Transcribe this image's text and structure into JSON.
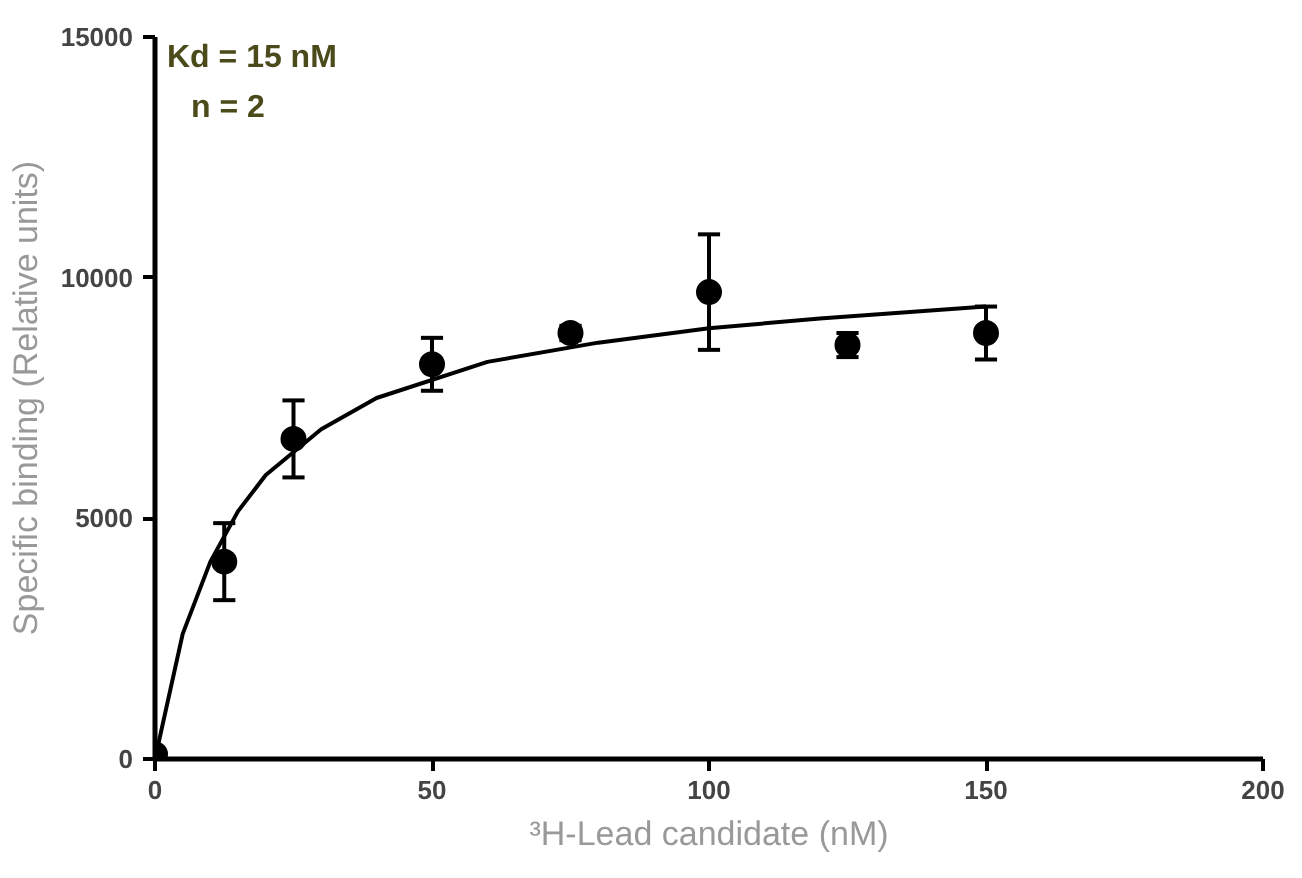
{
  "chart_data": {
    "type": "scatter",
    "xlabel": "³H-Lead candidate (nM)",
    "ylabel": "Specific binding (Relative units)",
    "xlim": [
      0,
      200
    ],
    "xticks": [
      0,
      50,
      100,
      150,
      200
    ],
    "ylim": [
      0,
      15000
    ],
    "yticks": [
      0,
      5000,
      10000,
      15000
    ],
    "grid": false,
    "annotations": [
      "Kd = 15 nM",
      "n = 2"
    ],
    "series": [
      {
        "marker": "circle",
        "color": "#000000",
        "x": [
          0,
          12.5,
          25,
          50,
          75,
          100,
          125,
          150
        ],
        "values": [
          100,
          4100,
          6650,
          8200,
          8850,
          9700,
          8600,
          8850
        ],
        "errors": [
          null,
          800,
          800,
          550,
          150,
          1200,
          250,
          550
        ]
      },
      {
        "type": "line",
        "color": "#000000",
        "x": [
          0,
          5,
          10,
          15,
          20,
          30,
          40,
          60,
          80,
          100,
          120,
          150
        ],
        "values": [
          0,
          2600,
          4100,
          5150,
          5900,
          6850,
          7500,
          8250,
          8650,
          8950,
          9150,
          9400
        ]
      }
    ]
  }
}
